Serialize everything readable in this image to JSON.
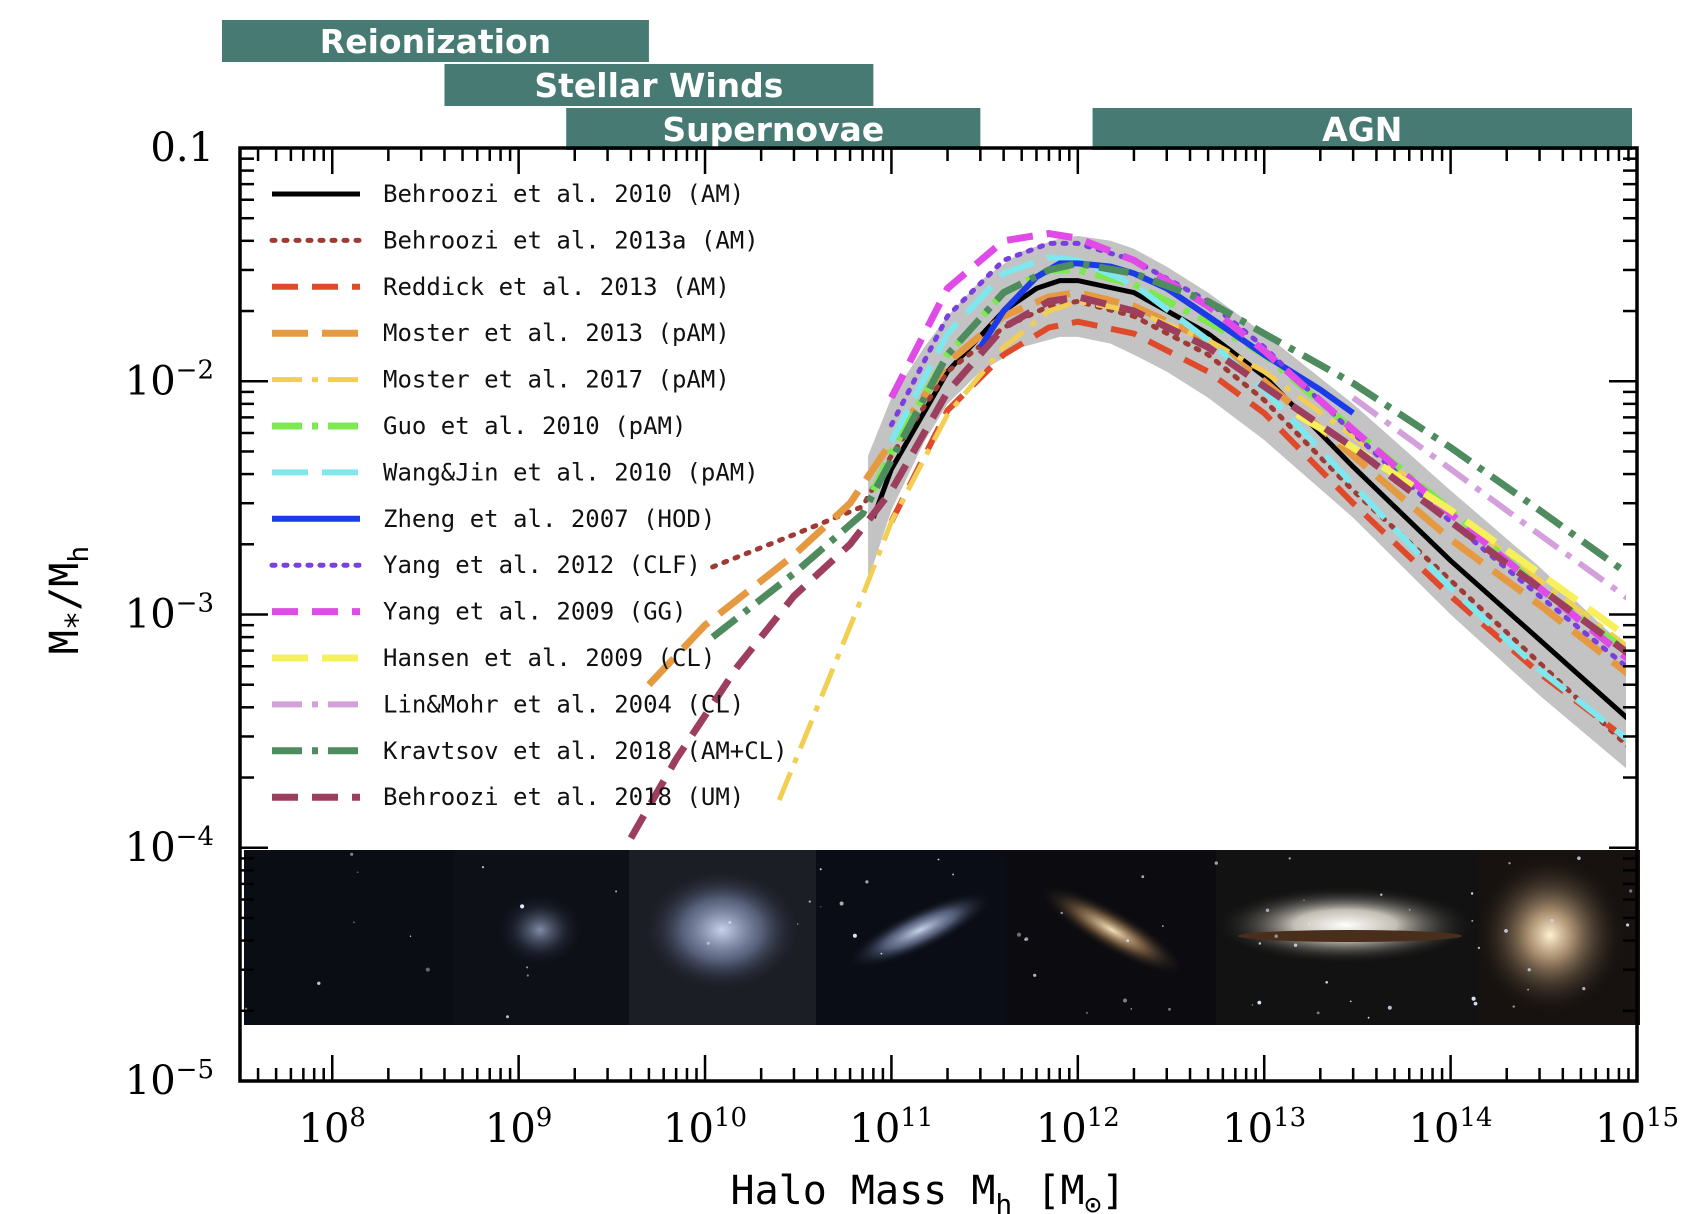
{
  "chart_data": {
    "type": "line",
    "xlabel": "Halo Mass M_h [M_⊙]",
    "xlabel_main": "Halo Mass M",
    "xlabel_sub": "h",
    "xlabel_unit_open": " [M",
    "xlabel_unit_sub": "⊙",
    "xlabel_unit_close": "]",
    "ylabel": "M_*/M_h",
    "ylabel_m1": "M",
    "ylabel_star": "*",
    "ylabel_slash": "/M",
    "ylabel_h": "h",
    "x_scale": "log",
    "y_scale": "log",
    "xlim": [
      32000000.0,
      1000000000000000.0
    ],
    "ylim": [
      1e-05,
      0.1
    ],
    "x_ticks": [
      {
        "value": 100000000.0,
        "base": "10",
        "exp": "8"
      },
      {
        "value": 1000000000.0,
        "base": "10",
        "exp": "9"
      },
      {
        "value": 10000000000.0,
        "base": "10",
        "exp": "10"
      },
      {
        "value": 100000000000.0,
        "base": "10",
        "exp": "11"
      },
      {
        "value": 1000000000000.0,
        "base": "10",
        "exp": "12"
      },
      {
        "value": 10000000000000.0,
        "base": "10",
        "exp": "13"
      },
      {
        "value": 100000000000000.0,
        "base": "10",
        "exp": "14"
      },
      {
        "value": 1000000000000000.0,
        "base": "10",
        "exp": "15"
      }
    ],
    "y_ticks": [
      {
        "value": 0.1,
        "label": "0.1"
      },
      {
        "value": 0.01,
        "base": "10",
        "exp": "−2"
      },
      {
        "value": 0.001,
        "base": "10",
        "exp": "−3"
      },
      {
        "value": 0.0001,
        "base": "10",
        "exp": "−4"
      },
      {
        "value": 1e-05,
        "base": "10",
        "exp": "−5"
      }
    ],
    "feedback_bands": [
      {
        "label": "Reionization",
        "x_range": [
          22000000.0,
          5000000000.0
        ],
        "row": 0
      },
      {
        "label": "Stellar Winds",
        "x_range": [
          400000000.0,
          80000000000.0
        ],
        "row": 1
      },
      {
        "label": "Supernovae",
        "x_range": [
          1800000000.0,
          300000000000.0
        ],
        "row": 2
      },
      {
        "label": "AGN",
        "x_range": [
          1200000000000.0,
          1000000000000000.0
        ],
        "row": 2
      }
    ],
    "uncertainty_band": {
      "x": [
        75000000000.0,
        100000000000.0,
        150000000000.0,
        200000000000.0,
        300000000000.0,
        500000000000.0,
        800000000000.0,
        1000000000000.0,
        1500000000000.0,
        2000000000000.0,
        3000000000000.0,
        5000000000000.0,
        10000000000000.0,
        30000000000000.0,
        100000000000000.0,
        300000000000000.0,
        1000000000000000.0
      ],
      "upper": [
        0.0048,
        0.0085,
        0.014,
        0.019,
        0.027,
        0.036,
        0.041,
        0.042,
        0.04,
        0.037,
        0.031,
        0.024,
        0.016,
        0.008,
        0.0034,
        0.0016,
        0.00065
      ],
      "lower": [
        0.0014,
        0.0028,
        0.0055,
        0.008,
        0.011,
        0.014,
        0.0155,
        0.0155,
        0.0145,
        0.013,
        0.011,
        0.0085,
        0.0056,
        0.0026,
        0.001,
        0.00045,
        0.0002
      ]
    },
    "series": [
      {
        "name": "Behroozi et al. 2010 (AM)",
        "color": "#000000",
        "dash": "solid",
        "width": 5,
        "x": [
          80000000000.0,
          100000000000.0,
          200000000000.0,
          400000000000.0,
          600000000000.0,
          800000000000.0,
          1000000000000.0,
          2000000000000.0,
          5000000000000.0,
          10000000000000.0,
          30000000000000.0,
          100000000000000.0,
          300000000000000.0,
          1000000000000000.0
        ],
        "y": [
          0.0026,
          0.0042,
          0.011,
          0.02,
          0.025,
          0.027,
          0.027,
          0.024,
          0.016,
          0.0105,
          0.0043,
          0.0017,
          0.00078,
          0.00033
        ]
      },
      {
        "name": "Behroozi et al. 2013a (AM)",
        "color": "#9e3b34",
        "dash": "dot",
        "width": 5,
        "x": [
          11000000000.0,
          30000000000.0,
          70000000000.0,
          100000000000.0,
          200000000000.0,
          400000000000.0,
          700000000000.0,
          1000000000000.0,
          2000000000000.0,
          5000000000000.0,
          10000000000000.0,
          30000000000000.0,
          100000000000000.0,
          300000000000000.0,
          1000000000000000.0
        ],
        "y": [
          0.0016,
          0.0022,
          0.0029,
          0.0048,
          0.011,
          0.017,
          0.021,
          0.022,
          0.019,
          0.013,
          0.0083,
          0.0034,
          0.0014,
          0.00062,
          0.00025
        ]
      },
      {
        "name": "Reddick et al. 2013 (AM)",
        "color": "#e04a2c",
        "dash": "dash",
        "width": 6,
        "x": [
          100000000000.0,
          200000000000.0,
          400000000000.0,
          700000000000.0,
          1000000000000.0,
          2000000000000.0,
          5000000000000.0,
          10000000000000.0,
          30000000000000.0,
          100000000000000.0,
          300000000000000.0,
          1000000000000000.0
        ],
        "y": [
          0.0025,
          0.0075,
          0.013,
          0.017,
          0.018,
          0.016,
          0.011,
          0.0073,
          0.003,
          0.0012,
          0.00056,
          0.00027
        ]
      },
      {
        "name": "Moster et al. 2013 (pAM)",
        "color": "#e59940",
        "dash": "longdash",
        "width": 7,
        "x": [
          5000000000.0,
          10000000000.0,
          30000000000.0,
          60000000000.0,
          100000000000.0,
          200000000000.0,
          400000000000.0,
          700000000000.0,
          1000000000000.0,
          2000000000000.0,
          5000000000000.0,
          10000000000000.0,
          30000000000000.0,
          100000000000000.0,
          300000000000000.0,
          1000000000000000.0
        ],
        "y": [
          0.0005,
          0.0009,
          0.0018,
          0.003,
          0.0055,
          0.012,
          0.019,
          0.023,
          0.024,
          0.021,
          0.015,
          0.01,
          0.0048,
          0.0021,
          0.0011,
          0.00052
        ]
      },
      {
        "name": "Moster et al. 2017 (pAM)",
        "color": "#f2cf52",
        "dash": "dashdot",
        "width": 5,
        "x": [
          25000000000.0,
          40000000000.0,
          70000000000.0,
          100000000000.0,
          200000000000.0,
          400000000000.0,
          700000000000.0,
          1000000000000.0,
          2000000000000.0,
          5000000000000.0,
          10000000000000.0,
          30000000000000.0,
          100000000000000.0,
          300000000000000.0,
          1000000000000000.0
        ],
        "y": [
          0.00016,
          0.0004,
          0.0012,
          0.0025,
          0.0072,
          0.014,
          0.02,
          0.022,
          0.02,
          0.015,
          0.011,
          0.0058,
          0.0028,
          0.0014,
          0.00068
        ]
      },
      {
        "name": "Guo et al. 2010 (pAM)",
        "color": "#7de84f",
        "dash": "dashdot",
        "width": 7,
        "x": [
          80000000000.0,
          100000000000.0,
          200000000000.0,
          400000000000.0,
          700000000000.0,
          1000000000000.0,
          2000000000000.0,
          5000000000000.0,
          10000000000000.0,
          30000000000000.0,
          100000000000000.0,
          300000000000000.0,
          1000000000000000.0
        ],
        "y": [
          0.0034,
          0.005,
          0.013,
          0.024,
          0.03,
          0.03,
          0.026,
          0.018,
          0.013,
          0.0062,
          0.0028,
          0.0013,
          0.00065
        ]
      },
      {
        "name": "Wang&Jin et al. 2010 (pAM)",
        "color": "#7ee8ee",
        "dash": "longdash",
        "width": 6,
        "x": [
          100000000000.0,
          200000000000.0,
          400000000000.0,
          700000000000.0,
          1000000000000.0,
          2000000000000.0,
          5000000000000.0,
          10000000000000.0,
          30000000000000.0,
          100000000000000.0,
          300000000000000.0,
          1000000000000000.0
        ],
        "y": [
          0.0055,
          0.016,
          0.029,
          0.034,
          0.033,
          0.026,
          0.015,
          0.0092,
          0.0036,
          0.0013,
          0.00058,
          0.00027
        ]
      },
      {
        "name": "Zheng et al. 2007 (HOD)",
        "color": "#1b3be8",
        "dash": "solid",
        "width": 6,
        "x": [
          300000000000.0,
          400000000000.0,
          600000000000.0,
          800000000000.0,
          1000000000000.0,
          1500000000000.0,
          2000000000000.0,
          3000000000000.0,
          5000000000000.0,
          10000000000000.0,
          20000000000000.0,
          30000000000000.0
        ],
        "y": [
          0.014,
          0.02,
          0.028,
          0.032,
          0.032,
          0.031,
          0.029,
          0.025,
          0.019,
          0.013,
          0.0092,
          0.0073
        ]
      },
      {
        "name": "Yang et al. 2012 (CLF)",
        "color": "#7a3fe0",
        "dash": "dot",
        "width": 5,
        "x": [
          100000000000.0,
          200000000000.0,
          400000000000.0,
          700000000000.0,
          1000000000000.0,
          2000000000000.0,
          5000000000000.0,
          10000000000000.0,
          30000000000000.0,
          100000000000000.0,
          300000000000000.0,
          1000000000000000.0
        ],
        "y": [
          0.0065,
          0.019,
          0.033,
          0.039,
          0.039,
          0.033,
          0.022,
          0.014,
          0.006,
          0.0025,
          0.0012,
          0.00055
        ]
      },
      {
        "name": "Yang et al. 2009 (GG)",
        "color": "#e04be8",
        "dash": "dash",
        "width": 7,
        "x": [
          100000000000.0,
          200000000000.0,
          400000000000.0,
          700000000000.0,
          1000000000000.0,
          2000000000000.0,
          5000000000000.0,
          10000000000000.0,
          30000000000000.0,
          100000000000000.0,
          300000000000000.0,
          1000000000000000.0
        ],
        "y": [
          0.0085,
          0.025,
          0.04,
          0.043,
          0.041,
          0.033,
          0.021,
          0.0135,
          0.0062,
          0.0027,
          0.0013,
          0.0006
        ]
      },
      {
        "name": "Hansen et al. 2009 (CL)",
        "color": "#f6f05a",
        "dash": "longdash",
        "width": 7,
        "x": [
          15000000000000.0,
          30000000000000.0,
          100000000000000.0,
          300000000000000.0,
          1000000000000000.0
        ],
        "y": [
          0.0072,
          0.0052,
          0.0028,
          0.0015,
          0.00075
        ]
      },
      {
        "name": "Lin&Mohr et al. 2004 (CL)",
        "color": "#d3a0db",
        "dash": "dashdot",
        "width": 6,
        "x": [
          30000000000000.0,
          100000000000000.0,
          300000000000000.0,
          1000000000000000.0
        ],
        "y": [
          0.0085,
          0.0042,
          0.0022,
          0.0011
        ]
      },
      {
        "name": "Kravtsov et al. 2018 (AM+CL)",
        "color": "#4e8b5f",
        "dash": "dashdot",
        "width": 7,
        "x": [
          11000000000.0,
          30000000000.0,
          70000000000.0,
          100000000000.0,
          200000000000.0,
          400000000000.0,
          700000000000.0,
          1000000000000.0,
          2000000000000.0,
          5000000000000.0,
          10000000000000.0,
          30000000000000.0,
          100000000000000.0,
          300000000000000.0,
          1000000000000000.0
        ],
        "y": [
          0.0008,
          0.0015,
          0.0027,
          0.0046,
          0.013,
          0.024,
          0.03,
          0.032,
          0.029,
          0.022,
          0.016,
          0.0098,
          0.0052,
          0.0028,
          0.0014
        ]
      },
      {
        "name": "Behroozi et al. 2018 (UM)",
        "color": "#9e3e5e",
        "dash": "dash",
        "width": 7,
        "x": [
          4000000000.0,
          7000000000.0,
          15000000000.0,
          30000000000.0,
          60000000000.0,
          100000000000.0,
          200000000000.0,
          400000000000.0,
          700000000000.0,
          1000000000000.0,
          2000000000000.0,
          5000000000000.0,
          10000000000000.0,
          30000000000000.0,
          100000000000000.0,
          300000000000000.0,
          1000000000000000.0
        ],
        "y": [
          0.00011,
          0.00024,
          0.0006,
          0.0012,
          0.002,
          0.0034,
          0.009,
          0.017,
          0.022,
          0.023,
          0.02,
          0.014,
          0.0095,
          0.0052,
          0.0025,
          0.0013,
          0.00064
        ]
      }
    ],
    "legend_position": "top-left",
    "grid": false,
    "bottom_strip": "galaxy images"
  }
}
